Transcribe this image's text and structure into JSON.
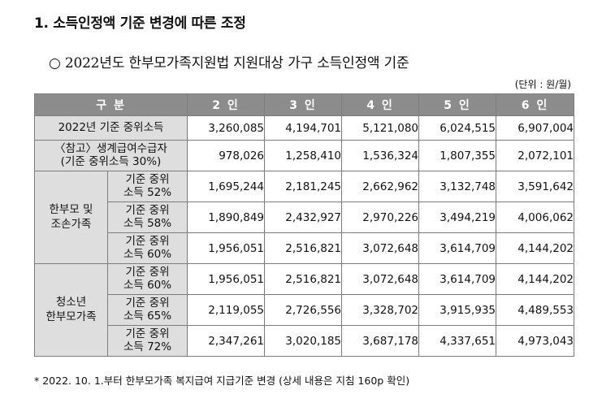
{
  "section_title": "1. 소득인정액 기준 변경에 따른 조정",
  "subtitle": "○ 2022년도 한부모가족지원법 지원대상 가구 소득인정액 기준",
  "unit": "(단위 : 원/월)",
  "table": {
    "headers": [
      "구 분",
      "2 인",
      "3 인",
      "4 인",
      "5 인",
      "6 인"
    ],
    "row_median": {
      "label": "2022년 기준 중위소득",
      "values": [
        "3,260,085",
        "4,194,701",
        "5,121,080",
        "6,024,515",
        "6,907,004"
      ]
    },
    "row_ref": {
      "label": "〈참고〉생계급여수급자\n(기준 중위소득 30%)",
      "values": [
        "978,026",
        "1,258,410",
        "1,536,324",
        "1,807,355",
        "2,072,101"
      ]
    },
    "group1": {
      "label": "한부모 및\n조손가족",
      "rows": [
        {
          "sub": "기준 중위\n소득 52%",
          "values": [
            "1,695,244",
            "2,181,245",
            "2,662,962",
            "3,132,748",
            "3,591,642"
          ]
        },
        {
          "sub": "기준 중위\n소득 58%",
          "values": [
            "1,890,849",
            "2,432,927",
            "2,970,226",
            "3,494,219",
            "4,006,062"
          ]
        },
        {
          "sub": "기준 중위\n소득 60%",
          "values": [
            "1,956,051",
            "2,516,821",
            "3,072,648",
            "3,614,709",
            "4,144,202"
          ]
        }
      ]
    },
    "group2": {
      "label": "청소년\n한부모가족",
      "rows": [
        {
          "sub": "기준 중위\n소득 60%",
          "values": [
            "1,956,051",
            "2,516,821",
            "3,072,648",
            "3,614,709",
            "4,144,202"
          ]
        },
        {
          "sub": "기준 중위\n소득 65%",
          "values": [
            "2,119,055",
            "2,726,556",
            "3,328,702",
            "3,915,935",
            "4,489,553"
          ]
        },
        {
          "sub": "기준 중위\n소득 72%",
          "values": [
            "2,347,261",
            "3,020,185",
            "3,687,178",
            "4,337,651",
            "4,973,043"
          ]
        }
      ]
    }
  },
  "footnote": "* 2022. 10. 1.부터 한부모가족 복지급여 지급기준 변경 (상세 내용은 지침 160p 확인)"
}
